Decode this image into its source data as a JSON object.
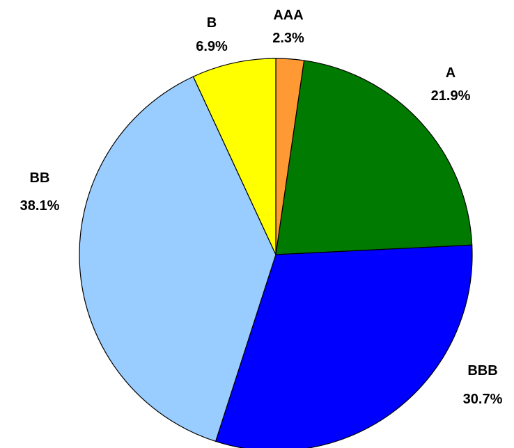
{
  "chart_data": {
    "type": "pie",
    "title": "",
    "categories": [
      "AAA",
      "A",
      "BBB",
      "BB",
      "B"
    ],
    "values": [
      2.3,
      21.9,
      30.7,
      38.1,
      6.9
    ],
    "labels": [
      "2.3%",
      "21.9%",
      "30.7%",
      "38.1%",
      "6.9%"
    ],
    "colors": [
      "#FF9933",
      "#007A00",
      "#0000FF",
      "#99CCFF",
      "#FFFF00"
    ],
    "start": "12 o'clock",
    "direction": "clockwise",
    "legend": "none"
  }
}
